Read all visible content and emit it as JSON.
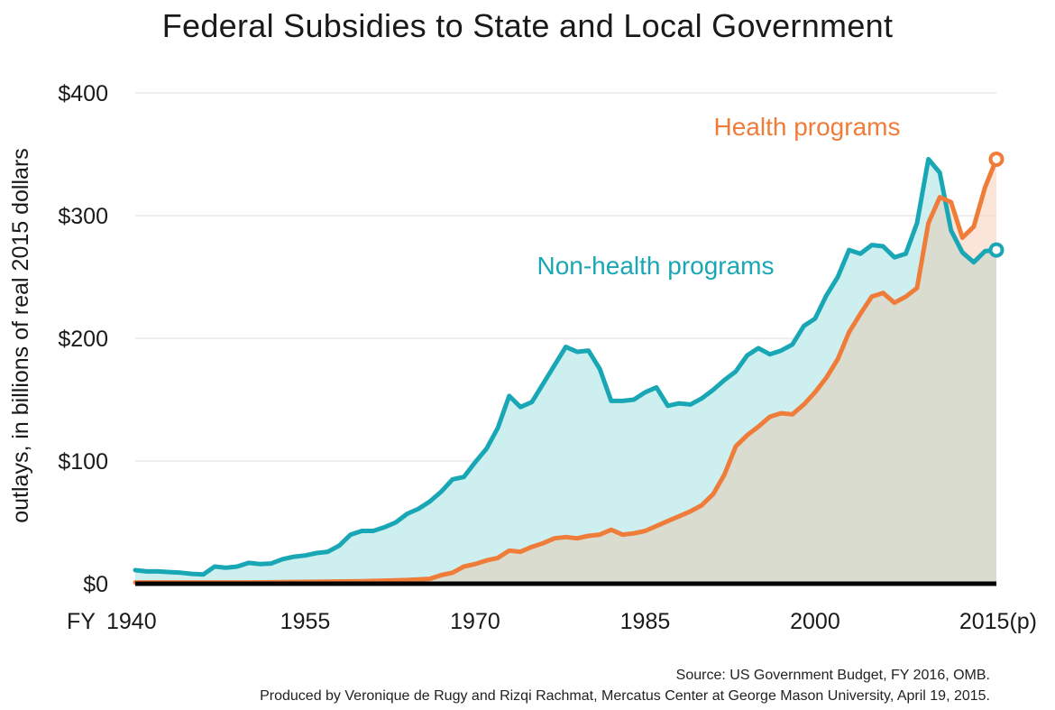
{
  "chart_data": {
    "type": "area",
    "title": "Federal Subsidies to State and Local Government",
    "ylabel": "outlays, in billions of real 2015 dollars",
    "xlabel": "",
    "ylim": [
      0,
      400
    ],
    "xlim": [
      1940,
      2016
    ],
    "y_ticks": [
      {
        "value": 0,
        "label": "$0"
      },
      {
        "value": 100,
        "label": "$100"
      },
      {
        "value": 200,
        "label": "$200"
      },
      {
        "value": 300,
        "label": "$300"
      },
      {
        "value": 400,
        "label": "$400"
      }
    ],
    "x_prefix_label": "FY",
    "x_ticks": [
      {
        "value": 1940,
        "label": "1940"
      },
      {
        "value": 1955,
        "label": "1955"
      },
      {
        "value": 1970,
        "label": "1970"
      },
      {
        "value": 1985,
        "label": "1985"
      },
      {
        "value": 2000,
        "label": "2000"
      },
      {
        "value": 2016,
        "label": "2015(p)"
      }
    ],
    "grid": true,
    "series": [
      {
        "name": "Non-health programs",
        "color": "#1aa7b5",
        "fill": "#cdeff0",
        "points": [
          [
            1940,
            11
          ],
          [
            1941,
            10
          ],
          [
            1942,
            10
          ],
          [
            1943,
            9.5
          ],
          [
            1944,
            9
          ],
          [
            1945,
            8
          ],
          [
            1946,
            7.5
          ],
          [
            1947,
            14
          ],
          [
            1948,
            13
          ],
          [
            1949,
            14
          ],
          [
            1950,
            17
          ],
          [
            1951,
            16
          ],
          [
            1952,
            16.5
          ],
          [
            1953,
            20
          ],
          [
            1954,
            22
          ],
          [
            1955,
            23
          ],
          [
            1956,
            25
          ],
          [
            1957,
            26
          ],
          [
            1958,
            31
          ],
          [
            1959,
            40
          ],
          [
            1960,
            43
          ],
          [
            1961,
            43
          ],
          [
            1962,
            46
          ],
          [
            1963,
            50
          ],
          [
            1964,
            57
          ],
          [
            1965,
            61
          ],
          [
            1966,
            67
          ],
          [
            1967,
            75
          ],
          [
            1968,
            85
          ],
          [
            1969,
            87
          ],
          [
            1970,
            99
          ],
          [
            1971,
            110
          ],
          [
            1972,
            127
          ],
          [
            1973,
            153
          ],
          [
            1974,
            144
          ],
          [
            1975,
            148
          ],
          [
            1976,
            163
          ],
          [
            1977,
            178
          ],
          [
            1978,
            193
          ],
          [
            1979,
            189
          ],
          [
            1980,
            190
          ],
          [
            1981,
            175
          ],
          [
            1982,
            149
          ],
          [
            1983,
            149
          ],
          [
            1984,
            150
          ],
          [
            1985,
            156
          ],
          [
            1986,
            160
          ],
          [
            1987,
            145
          ],
          [
            1988,
            147
          ],
          [
            1989,
            146
          ],
          [
            1990,
            151
          ],
          [
            1991,
            158
          ],
          [
            1992,
            166
          ],
          [
            1993,
            173
          ],
          [
            1994,
            186
          ],
          [
            1995,
            192
          ],
          [
            1996,
            187
          ],
          [
            1997,
            190
          ],
          [
            1998,
            195
          ],
          [
            1999,
            210
          ],
          [
            2000,
            216
          ],
          [
            2001,
            235
          ],
          [
            2002,
            250
          ],
          [
            2003,
            272
          ],
          [
            2004,
            269
          ],
          [
            2005,
            276
          ],
          [
            2006,
            275
          ],
          [
            2007,
            266
          ],
          [
            2008,
            269
          ],
          [
            2009,
            294
          ],
          [
            2010,
            346
          ],
          [
            2011,
            335
          ],
          [
            2012,
            288
          ],
          [
            2013,
            270
          ],
          [
            2014,
            262
          ],
          [
            2015,
            271
          ],
          [
            2016,
            272
          ]
        ]
      },
      {
        "name": "Health programs",
        "color": "#f07c3a",
        "fill": "#f9d4bf",
        "points": [
          [
            1940,
            1
          ],
          [
            1945,
            1
          ],
          [
            1950,
            1
          ],
          [
            1955,
            1.5
          ],
          [
            1960,
            2
          ],
          [
            1962,
            2.5
          ],
          [
            1964,
            3
          ],
          [
            1966,
            4
          ],
          [
            1967,
            7
          ],
          [
            1968,
            9
          ],
          [
            1969,
            14
          ],
          [
            1970,
            16
          ],
          [
            1971,
            19
          ],
          [
            1972,
            21
          ],
          [
            1973,
            27
          ],
          [
            1974,
            26
          ],
          [
            1975,
            30
          ],
          [
            1976,
            33
          ],
          [
            1977,
            37
          ],
          [
            1978,
            38
          ],
          [
            1979,
            37
          ],
          [
            1980,
            39
          ],
          [
            1981,
            40
          ],
          [
            1982,
            44
          ],
          [
            1983,
            40
          ],
          [
            1984,
            41
          ],
          [
            1985,
            43
          ],
          [
            1986,
            47
          ],
          [
            1987,
            51
          ],
          [
            1988,
            55
          ],
          [
            1989,
            59
          ],
          [
            1990,
            64
          ],
          [
            1991,
            73
          ],
          [
            1992,
            89
          ],
          [
            1993,
            112
          ],
          [
            1994,
            121
          ],
          [
            1995,
            128
          ],
          [
            1996,
            136
          ],
          [
            1997,
            139
          ],
          [
            1998,
            138
          ],
          [
            1999,
            146
          ],
          [
            2000,
            156
          ],
          [
            2001,
            168
          ],
          [
            2002,
            183
          ],
          [
            2003,
            205
          ],
          [
            2004,
            220
          ],
          [
            2005,
            234
          ],
          [
            2006,
            237
          ],
          [
            2007,
            229
          ],
          [
            2008,
            234
          ],
          [
            2009,
            241
          ],
          [
            2010,
            294
          ],
          [
            2011,
            315
          ],
          [
            2012,
            311
          ],
          [
            2013,
            282
          ],
          [
            2014,
            291
          ],
          [
            2015,
            323
          ],
          [
            2016,
            346
          ]
        ]
      }
    ],
    "annotations": [
      {
        "text": "Health programs",
        "color": "#f07c3a"
      },
      {
        "text": "Non-health programs",
        "color": "#1aa7b5"
      }
    ]
  },
  "footer": {
    "source": "Source: US Government Budget, FY 2016, OMB.",
    "credit": "Produced by Veronique de Rugy and Rizqi Rachmat, Mercatus Center at George Mason University, April 19, 2015."
  }
}
